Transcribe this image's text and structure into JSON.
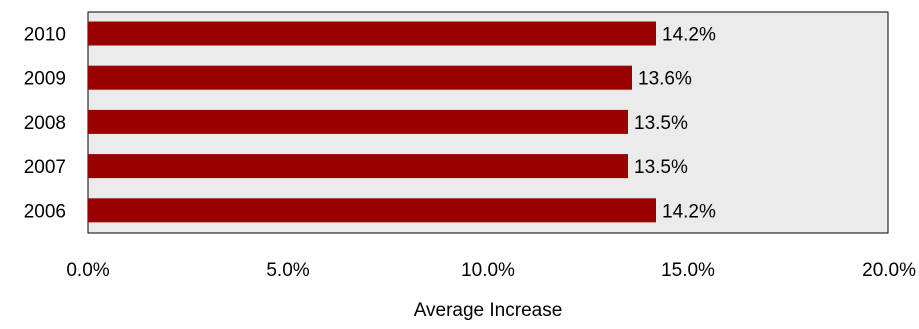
{
  "chart_data": {
    "type": "bar",
    "orientation": "horizontal",
    "categories": [
      "2010",
      "2009",
      "2008",
      "2007",
      "2006"
    ],
    "values": [
      14.2,
      13.6,
      13.5,
      13.5,
      14.2
    ],
    "value_labels": [
      "14.2%",
      "13.6%",
      "13.5%",
      "13.5%",
      "14.2%"
    ],
    "title": "",
    "xlabel": "Average Increase",
    "ylabel": "",
    "xlim": [
      0,
      20
    ],
    "x_ticks": [
      0,
      5,
      10,
      15,
      20
    ],
    "x_tick_labels": [
      "0.0%",
      "5.0%",
      "10.0%",
      "15.0%",
      "20.0%"
    ],
    "grid": false,
    "legend": "none",
    "bar_color": "#990000",
    "plot_background": "#EBEBEB"
  }
}
